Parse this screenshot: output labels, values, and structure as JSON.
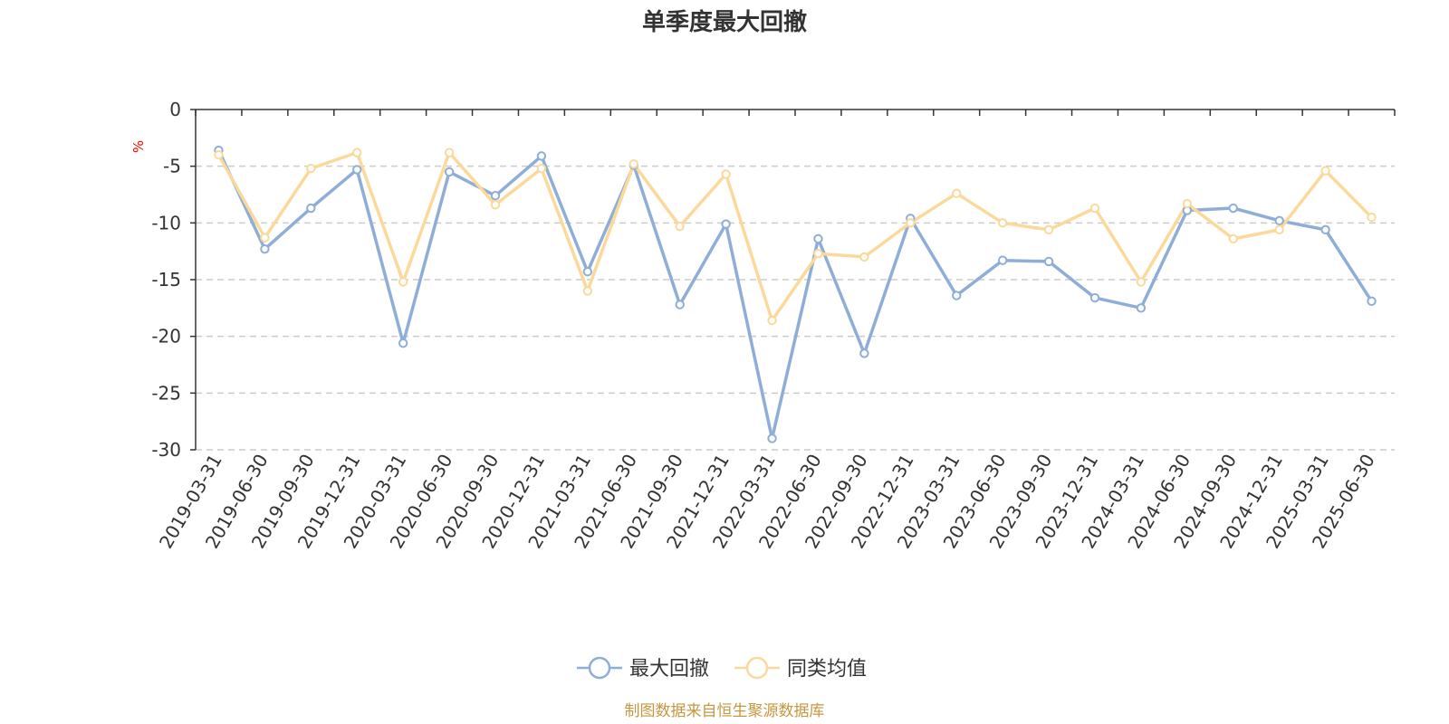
{
  "chart_data": {
    "type": "line",
    "title": "单季度最大回撤",
    "ylabel": "%",
    "xlabel": "",
    "ylim": [
      -30,
      0
    ],
    "yticks": [
      0,
      -5,
      -10,
      -15,
      -20,
      -25,
      -30
    ],
    "grid": true,
    "legend_position": "bottom",
    "categories": [
      "2019-03-31",
      "2019-06-30",
      "2019-09-30",
      "2019-12-31",
      "2020-03-31",
      "2020-06-30",
      "2020-09-30",
      "2020-12-31",
      "2021-03-31",
      "2021-06-30",
      "2021-09-30",
      "2021-12-31",
      "2022-03-31",
      "2022-06-30",
      "2022-09-30",
      "2022-12-31",
      "2023-03-31",
      "2023-06-30",
      "2023-09-30",
      "2023-12-31",
      "2024-03-31",
      "2024-06-30",
      "2024-09-30",
      "2024-12-31",
      "2025-03-31",
      "2025-06-30"
    ],
    "series": [
      {
        "name": "最大回撤",
        "color": "#8eaed8",
        "values": [
          -3.6,
          -12.3,
          -8.7,
          -5.3,
          -20.6,
          -5.5,
          -7.6,
          -4.1,
          -14.3,
          -4.9,
          -17.2,
          -10.1,
          -29.0,
          -11.4,
          -21.5,
          -9.6,
          -16.4,
          -13.3,
          -13.4,
          -16.6,
          -17.5,
          -8.9,
          -8.7,
          -9.8,
          -10.6,
          -16.9
        ]
      },
      {
        "name": "同类均值",
        "color": "#fbd99a",
        "values": [
          -4.0,
          -11.3,
          -5.2,
          -3.8,
          -15.2,
          -3.8,
          -8.4,
          -5.2,
          -16.0,
          -4.8,
          -10.3,
          -5.7,
          -18.6,
          -12.7,
          -13.0,
          -10.0,
          -7.4,
          -10.0,
          -10.6,
          -8.7,
          -15.2,
          -8.3,
          -11.4,
          -10.6,
          -5.4,
          -9.5
        ]
      }
    ]
  },
  "source_note": "制图数据来自恒生聚源数据库"
}
